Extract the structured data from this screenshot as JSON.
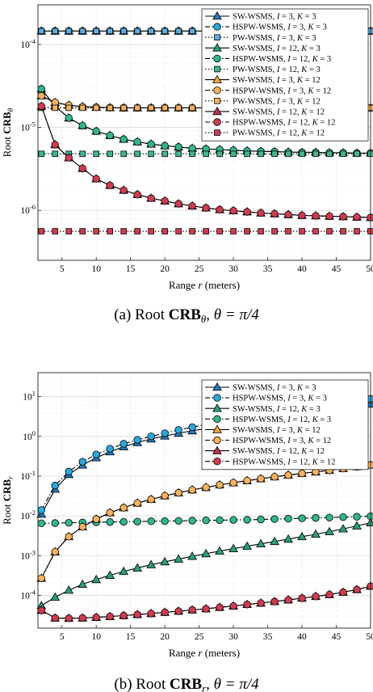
{
  "chart_data": [
    {
      "type": "line",
      "yscale": "log",
      "xlabel": "Range r (meters)",
      "ylabel": "Root CRB_θ",
      "caption": "(a) Root CRB_θ, θ = π/4",
      "xlim": [
        1.5,
        50
      ],
      "ylim": [
        2.5e-07,
        0.0003
      ],
      "xticks": [
        5,
        10,
        15,
        20,
        25,
        30,
        35,
        40,
        45,
        50
      ],
      "yticks": [
        1e-06,
        1e-05,
        0.0001
      ],
      "ytick_labels": [
        "10^-6",
        "10^-5",
        "10^-4"
      ],
      "grid": true,
      "legend_position": "top-right",
      "x": [
        2,
        4,
        6,
        8,
        10,
        12,
        14,
        16,
        18,
        20,
        22,
        24,
        26,
        28,
        30,
        32,
        34,
        36,
        38,
        40,
        42,
        44,
        46,
        48,
        50
      ],
      "series": [
        {
          "name": "SW-WSMS, I = 3, K = 3",
          "color": "#1f7cc0",
          "marker": "triangle",
          "line": "solid",
          "values": [
            0.000145,
            0.000145,
            0.000145,
            0.000145,
            0.000145,
            0.000145,
            0.000145,
            0.000145,
            0.000145,
            0.000145,
            0.000145,
            0.000145,
            0.000145,
            0.000145,
            0.000145,
            0.000145,
            0.000145,
            0.000145,
            0.000145,
            0.000145,
            0.000145,
            0.000145,
            0.000145,
            0.000145,
            0.000145
          ]
        },
        {
          "name": "HSPW-WSMS, I = 3, K = 3",
          "color": "#28a9e0",
          "marker": "circle",
          "line": "dashdot",
          "values": [
            0.000145,
            0.000145,
            0.000145,
            0.000145,
            0.000145,
            0.000145,
            0.000145,
            0.000145,
            0.000145,
            0.000145,
            0.000145,
            0.000145,
            0.000145,
            0.000145,
            0.000145,
            0.000145,
            0.000145,
            0.000145,
            0.000145,
            0.000145,
            0.000145,
            0.000145,
            0.000145,
            0.000145,
            0.000145
          ]
        },
        {
          "name": "PW-WSMS, I = 3, K = 3",
          "color": "#5aaee0",
          "marker": "square",
          "line": "dotted",
          "values": [
            0.000145,
            0.000145,
            0.000145,
            0.000145,
            0.000145,
            0.000145,
            0.000145,
            0.000145,
            0.000145,
            0.000145,
            0.000145,
            0.000145,
            0.000145,
            0.000145,
            0.000145,
            0.000145,
            0.000145,
            0.000145,
            0.000145,
            0.000145,
            0.000145,
            0.000145,
            0.000145,
            0.000145,
            0.000145
          ]
        },
        {
          "name": "SW-WSMS, I = 12, K = 3",
          "color": "#27a07a",
          "marker": "triangle",
          "line": "solid",
          "values": [
            2.9e-05,
            1.8e-05,
            1.3e-05,
            1.05e-05,
            9e-06,
            8e-06,
            7.2e-06,
            6.7e-06,
            6.3e-06,
            6e-06,
            5.8e-06,
            5.6e-06,
            5.5e-06,
            5.4e-06,
            5.3e-06,
            5.2e-06,
            5.15e-06,
            5.1e-06,
            5.05e-06,
            5e-06,
            5e-06,
            4.95e-06,
            4.95e-06,
            4.9e-06,
            4.9e-06
          ]
        },
        {
          "name": "HSPW-WSMS, I = 12, K = 3",
          "color": "#2fb88a",
          "marker": "circle",
          "line": "dashdot",
          "values": [
            2.9e-05,
            1.8e-05,
            1.3e-05,
            1.05e-05,
            9e-06,
            8e-06,
            7.2e-06,
            6.7e-06,
            6.3e-06,
            6e-06,
            5.8e-06,
            5.6e-06,
            5.5e-06,
            5.4e-06,
            5.3e-06,
            5.2e-06,
            5.15e-06,
            5.1e-06,
            5.05e-06,
            5e-06,
            5e-06,
            4.95e-06,
            4.95e-06,
            4.9e-06,
            4.9e-06
          ]
        },
        {
          "name": "PW-WSMS, I = 12, K = 3",
          "color": "#3cb890",
          "marker": "square",
          "line": "dotted",
          "values": [
            4.8e-06,
            4.8e-06,
            4.8e-06,
            4.8e-06,
            4.8e-06,
            4.8e-06,
            4.8e-06,
            4.8e-06,
            4.8e-06,
            4.8e-06,
            4.8e-06,
            4.8e-06,
            4.8e-06,
            4.8e-06,
            4.8e-06,
            4.8e-06,
            4.8e-06,
            4.8e-06,
            4.8e-06,
            4.8e-06,
            4.8e-06,
            4.8e-06,
            4.8e-06,
            4.8e-06,
            4.8e-06
          ]
        },
        {
          "name": "SW-WSMS, I = 3, K = 12",
          "color": "#f4a540",
          "marker": "triangle",
          "line": "solid",
          "values": [
            2.4e-05,
            2e-05,
            1.85e-05,
            1.78e-05,
            1.75e-05,
            1.73e-05,
            1.72e-05,
            1.72e-05,
            1.72e-05,
            1.72e-05,
            1.72e-05,
            1.72e-05,
            1.72e-05,
            1.72e-05,
            1.72e-05,
            1.72e-05,
            1.72e-05,
            1.72e-05,
            1.72e-05,
            1.72e-05,
            1.72e-05,
            1.72e-05,
            1.72e-05,
            1.72e-05,
            1.72e-05
          ]
        },
        {
          "name": "HSPW-WSMS, I = 3, K = 12",
          "color": "#f7b25a",
          "marker": "circle",
          "line": "dashdot",
          "values": [
            2.4e-05,
            2e-05,
            1.85e-05,
            1.78e-05,
            1.75e-05,
            1.73e-05,
            1.72e-05,
            1.72e-05,
            1.72e-05,
            1.72e-05,
            1.72e-05,
            1.72e-05,
            1.72e-05,
            1.72e-05,
            1.72e-05,
            1.72e-05,
            1.72e-05,
            1.72e-05,
            1.72e-05,
            1.72e-05,
            1.72e-05,
            1.72e-05,
            1.72e-05,
            1.72e-05,
            1.72e-05
          ]
        },
        {
          "name": "PW-WSMS, I = 3, K = 12",
          "color": "#f7b25a",
          "marker": "square",
          "line": "dotted",
          "values": [
            1.72e-05,
            1.72e-05,
            1.72e-05,
            1.72e-05,
            1.72e-05,
            1.72e-05,
            1.72e-05,
            1.72e-05,
            1.72e-05,
            1.72e-05,
            1.72e-05,
            1.72e-05,
            1.72e-05,
            1.72e-05,
            1.72e-05,
            1.72e-05,
            1.72e-05,
            1.72e-05,
            1.72e-05,
            1.72e-05,
            1.72e-05,
            1.72e-05,
            1.72e-05,
            1.72e-05,
            1.72e-05
          ]
        },
        {
          "name": "SW-WSMS, I = 12, K = 12",
          "color": "#c0304a",
          "marker": "triangle",
          "line": "solid",
          "values": [
            1.8e-05,
            6.2e-06,
            4.3e-06,
            3.2e-06,
            2.4e-06,
            2e-06,
            1.75e-06,
            1.55e-06,
            1.4e-06,
            1.3e-06,
            1.2e-06,
            1.13e-06,
            1.07e-06,
            1.02e-06,
            9.9e-07,
            9.6e-07,
            9.3e-07,
            9.1e-07,
            8.9e-07,
            8.7e-07,
            8.6e-07,
            8.5e-07,
            8.4e-07,
            8.3e-07,
            8.2e-07
          ]
        },
        {
          "name": "HSPW-WSMS, I = 12, K = 12",
          "color": "#d23a50",
          "marker": "circle",
          "line": "dashdot",
          "values": [
            1.8e-05,
            6.2e-06,
            4.3e-06,
            3.2e-06,
            2.4e-06,
            2e-06,
            1.75e-06,
            1.55e-06,
            1.4e-06,
            1.3e-06,
            1.2e-06,
            1.13e-06,
            1.07e-06,
            1.02e-06,
            9.9e-07,
            9.6e-07,
            9.3e-07,
            9.1e-07,
            8.9e-07,
            8.7e-07,
            8.6e-07,
            8.5e-07,
            8.4e-07,
            8.3e-07,
            8.2e-07
          ]
        },
        {
          "name": "PW-WSMS, I = 12, K = 12",
          "color": "#d23a50",
          "marker": "square",
          "line": "dotted",
          "values": [
            5.6e-07,
            5.6e-07,
            5.6e-07,
            5.6e-07,
            5.6e-07,
            5.6e-07,
            5.6e-07,
            5.6e-07,
            5.6e-07,
            5.6e-07,
            5.6e-07,
            5.6e-07,
            5.6e-07,
            5.6e-07,
            5.6e-07,
            5.6e-07,
            5.6e-07,
            5.6e-07,
            5.6e-07,
            5.6e-07,
            5.6e-07,
            5.6e-07,
            5.6e-07,
            5.6e-07,
            5.6e-07
          ]
        }
      ]
    },
    {
      "type": "line",
      "yscale": "log",
      "xlabel": "Range r (meters)",
      "ylabel": "Root CRB_r",
      "caption": "(b) Root CRB_r, θ = π/4",
      "xlim": [
        1.5,
        50
      ],
      "ylim": [
        1.5e-05,
        40
      ],
      "xticks": [
        5,
        10,
        15,
        20,
        25,
        30,
        35,
        40,
        45,
        50
      ],
      "yticks": [
        0.0001,
        0.001,
        0.01,
        0.1,
        1,
        10
      ],
      "ytick_labels": [
        "10^-4",
        "10^-3",
        "10^-2",
        "10^-1",
        "10^0",
        "10^1"
      ],
      "grid": true,
      "legend_position": "top-right",
      "x": [
        2,
        4,
        6,
        8,
        10,
        12,
        14,
        16,
        18,
        20,
        22,
        24,
        26,
        28,
        30,
        32,
        34,
        36,
        38,
        40,
        42,
        44,
        46,
        48,
        50
      ],
      "series": [
        {
          "name": "SW-WSMS, I = 3, K = 3",
          "color": "#1f7cc0",
          "marker": "triangle",
          "line": "solid",
          "values": [
            0.011,
            0.047,
            0.11,
            0.19,
            0.29,
            0.41,
            0.55,
            0.7,
            0.86,
            1.02,
            1.2,
            1.38,
            1.58,
            1.78,
            2.0,
            2.25,
            2.5,
            2.8,
            3.1,
            3.5,
            3.9,
            4.4,
            5.0,
            5.7,
            6.5
          ]
        },
        {
          "name": "HSPW-WSMS, I = 3, K = 3",
          "color": "#28a9e0",
          "marker": "circle",
          "line": "dashdot",
          "values": [
            0.014,
            0.058,
            0.13,
            0.23,
            0.35,
            0.49,
            0.65,
            0.82,
            1.0,
            1.2,
            1.45,
            1.7,
            1.98,
            2.28,
            2.6,
            2.95,
            3.3,
            3.7,
            4.2,
            4.7,
            5.3,
            6.0,
            6.8,
            7.7,
            8.8
          ]
        },
        {
          "name": "SW-WSMS, I = 12, K = 3",
          "color": "#27a07a",
          "marker": "triangle",
          "line": "solid",
          "values": [
            5.5e-05,
            9e-05,
            0.000135,
            0.00019,
            0.00025,
            0.00032,
            0.0004,
            0.00049,
            0.00059,
            0.0007,
            0.00082,
            0.00096,
            0.00112,
            0.0013,
            0.0015,
            0.00172,
            0.00198,
            0.00227,
            0.0026,
            0.003,
            0.00345,
            0.004,
            0.0047,
            0.0056,
            0.0067
          ]
        },
        {
          "name": "HSPW-WSMS, I = 12, K = 3",
          "color": "#2fb88a",
          "marker": "circle",
          "line": "dashdot",
          "values": [
            0.0065,
            0.0066,
            0.0067,
            0.0068,
            0.0069,
            0.007,
            0.0071,
            0.0072,
            0.0073,
            0.0074,
            0.0075,
            0.0076,
            0.0077,
            0.0078,
            0.0079,
            0.008,
            0.0081,
            0.0083,
            0.0085,
            0.0087,
            0.0089,
            0.0091,
            0.0093,
            0.0095,
            0.0098
          ]
        },
        {
          "name": "SW-WSMS, I = 3, K = 12",
          "color": "#f4a540",
          "marker": "triangle",
          "line": "solid",
          "values": [
            0.00027,
            0.00125,
            0.003,
            0.0053,
            0.0083,
            0.012,
            0.016,
            0.021,
            0.026,
            0.032,
            0.038,
            0.045,
            0.052,
            0.06,
            0.068,
            0.077,
            0.086,
            0.096,
            0.106,
            0.117,
            0.128,
            0.14,
            0.155,
            0.172,
            0.19
          ]
        },
        {
          "name": "HSPW-WSMS, I = 3, K = 12",
          "color": "#f7b25a",
          "marker": "circle",
          "line": "dashdot",
          "values": [
            0.00027,
            0.00125,
            0.003,
            0.0053,
            0.0083,
            0.012,
            0.016,
            0.021,
            0.026,
            0.032,
            0.038,
            0.045,
            0.052,
            0.06,
            0.068,
            0.077,
            0.086,
            0.096,
            0.106,
            0.117,
            0.128,
            0.14,
            0.155,
            0.172,
            0.19
          ]
        },
        {
          "name": "SW-WSMS, I = 12, K = 12",
          "color": "#c0304a",
          "marker": "triangle",
          "line": "solid",
          "values": [
            4.2e-05,
            2.7e-05,
            2.65e-05,
            2.7e-05,
            2.8e-05,
            2.95e-05,
            3.1e-05,
            3.3e-05,
            3.5e-05,
            3.75e-05,
            4e-05,
            4.3e-05,
            4.6e-05,
            5e-05,
            5.4e-05,
            5.9e-05,
            6.4e-05,
            7e-05,
            7.7e-05,
            8.5e-05,
            9.4e-05,
            0.000105,
            0.00012,
            0.00014,
            0.00017
          ]
        },
        {
          "name": "HSPW-WSMS, I = 12, K = 12",
          "color": "#d23a50",
          "marker": "circle",
          "line": "dashdot",
          "values": [
            4.2e-05,
            2.7e-05,
            2.65e-05,
            2.7e-05,
            2.8e-05,
            2.95e-05,
            3.1e-05,
            3.3e-05,
            3.5e-05,
            3.75e-05,
            4e-05,
            4.3e-05,
            4.6e-05,
            5e-05,
            5.4e-05,
            5.9e-05,
            6.4e-05,
            7e-05,
            7.7e-05,
            8.5e-05,
            9.4e-05,
            0.000105,
            0.00012,
            0.00014,
            0.00017
          ]
        }
      ]
    }
  ]
}
